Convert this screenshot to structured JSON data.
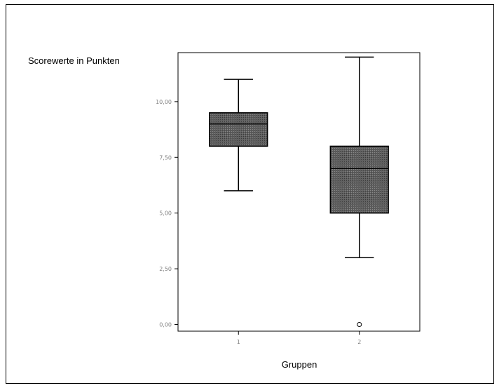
{
  "chart_data": {
    "type": "boxplot",
    "ylabel": "Scorewerte in Punkten",
    "xlabel": "Gruppen",
    "ylim": [
      -0.3,
      12.2
    ],
    "yticks": [
      {
        "value": 0,
        "label": "0,00"
      },
      {
        "value": 2.5,
        "label": "2,50"
      },
      {
        "value": 5,
        "label": "5,00"
      },
      {
        "value": 7.5,
        "label": "7,50"
      },
      {
        "value": 10,
        "label": "10,00"
      }
    ],
    "categories": [
      "1",
      "2"
    ],
    "boxes": [
      {
        "category": "1",
        "whisker_low": 6,
        "q1": 8,
        "median": 9,
        "q3": 9.5,
        "whisker_high": 11,
        "outliers": []
      },
      {
        "category": "2",
        "whisker_low": 3,
        "q1": 5,
        "median": 7,
        "q3": 8,
        "whisker_high": 12,
        "outliers": [
          0
        ]
      }
    ],
    "box_color": "#5a5a5a",
    "grid": false
  }
}
